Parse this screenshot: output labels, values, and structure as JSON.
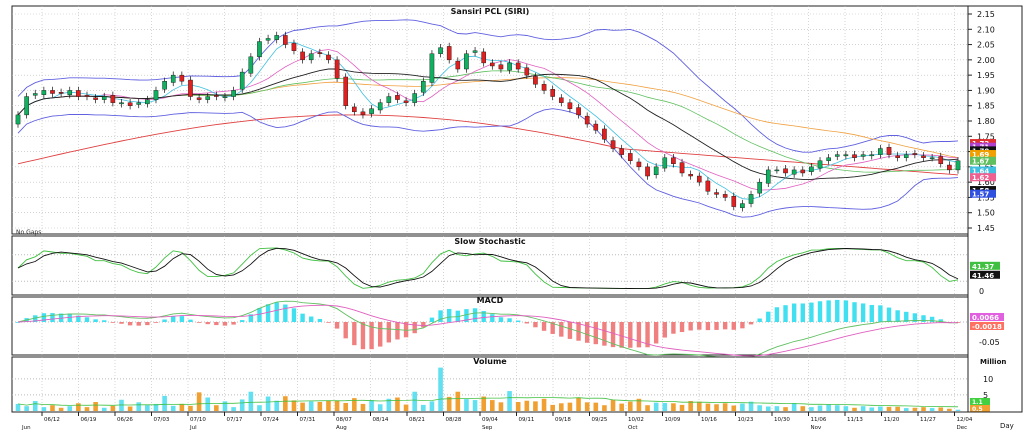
{
  "chart_data": [
    {
      "type": "candlestick",
      "title": "Sansiri PCL (SIRI)",
      "corner_label": "No Gaps",
      "ylim": [
        1.45,
        2.15
      ],
      "yticks": [
        "2.15",
        "2.10",
        "2.05",
        "2.00",
        "1.95",
        "1.90",
        "1.85",
        "1.80",
        "1.75",
        "1.70",
        "1.65",
        "1.60",
        "1.55",
        "1.50",
        "1.45"
      ],
      "price_tags": [
        {
          "text": "1.72",
          "color": "#e03030"
        },
        {
          "text": "1.71",
          "color": "#b040d0"
        },
        {
          "text": "1.70",
          "color": "#111111"
        },
        {
          "text": "1.69",
          "color": "#f0a000"
        },
        {
          "text": "1.67",
          "color": "#60c060"
        },
        {
          "text": "1.64",
          "color": "#40c0e0"
        },
        {
          "text": "1.62",
          "color": "#f06090"
        },
        {
          "text": "1.58",
          "color": "#111111"
        },
        {
          "text": "1.57",
          "color": "#3050e0"
        }
      ],
      "close": [
        1.82,
        1.88,
        1.89,
        1.9,
        1.89,
        1.89,
        1.9,
        1.88,
        1.88,
        1.87,
        1.88,
        1.86,
        1.86,
        1.85,
        1.86,
        1.87,
        1.9,
        1.93,
        1.95,
        1.93,
        1.88,
        1.87,
        1.88,
        1.88,
        1.88,
        1.9,
        1.96,
        2.01,
        2.06,
        2.07,
        2.08,
        2.05,
        2.03,
        2.0,
        2.02,
        2.02,
        2.0,
        1.94,
        1.85,
        1.83,
        1.82,
        1.84,
        1.86,
        1.88,
        1.87,
        1.86,
        1.89,
        1.93,
        2.02,
        2.04,
        2.0,
        1.97,
        2.02,
        2.03,
        1.99,
        1.98,
        1.97,
        1.99,
        1.97,
        1.95,
        1.92,
        1.9,
        1.88,
        1.86,
        1.84,
        1.82,
        1.79,
        1.77,
        1.74,
        1.71,
        1.69,
        1.67,
        1.65,
        1.62,
        1.65,
        1.68,
        1.66,
        1.63,
        1.62,
        1.6,
        1.57,
        1.56,
        1.55,
        1.52,
        1.53,
        1.56,
        1.6,
        1.64,
        1.64,
        1.63,
        1.64,
        1.63,
        1.65,
        1.67,
        1.68,
        1.69,
        1.69,
        1.68,
        1.69,
        1.69,
        1.71,
        1.69,
        1.68,
        1.69,
        1.69,
        1.68,
        1.68,
        1.66,
        1.64,
        1.67
      ]
    },
    {
      "type": "line",
      "title": "Slow Stochastic",
      "ylim": [
        0,
        100
      ],
      "yticks": [
        "0"
      ],
      "tags": [
        {
          "text": "41.37",
          "color": "#40c040"
        },
        {
          "text": "41.46",
          "color": "#111111"
        }
      ],
      "series": []
    },
    {
      "type": "line",
      "title": "MACD",
      "yticks": [
        "-0.05"
      ],
      "tags": [
        {
          "text": "0.0066",
          "color": "#e060e0"
        },
        {
          "text": "-0.0018",
          "color": "#ff7060"
        }
      ],
      "series": []
    },
    {
      "type": "bar",
      "title": "Volume",
      "unit_label": "Million",
      "yticks": [
        "10",
        "5"
      ],
      "values": [
        2.2,
        1.5,
        3.1,
        1.2,
        1.8,
        1.0,
        1.5,
        2.4,
        1.2,
        2.8,
        1.0,
        1.6,
        3.5,
        1.4,
        2.7,
        1.8,
        2.2,
        4.7,
        1.6,
        2.2,
        1.6,
        5.8,
        4.2,
        1.8,
        3.0,
        1.2,
        3.6,
        6.0,
        1.8,
        4.5,
        3.2,
        4.6,
        3.3,
        2.6,
        3.0,
        2.8,
        3.2,
        3.3,
        2.5,
        4.0,
        2.2,
        3.4,
        2.1,
        3.8,
        4.2,
        2.0,
        6.0,
        1.9,
        3.0,
        13.5,
        4.4,
        6.0,
        3.7,
        3.4,
        4.5,
        3.4,
        2.7,
        6.2,
        2.8,
        3.2,
        3.0,
        3.8,
        1.9,
        2.4,
        2.6,
        4.2,
        2.7,
        2.6,
        1.8,
        3.5,
        2.3,
        2.9,
        3.8,
        1.8,
        2.6,
        2.5,
        2.4,
        1.9,
        3.1,
        2.9,
        2.3,
        2.1,
        2.4,
        1.7,
        2.3,
        2.9,
        1.8,
        1.4,
        1.5,
        1.2,
        2.5,
        1.5,
        1.2,
        1.7,
        2.0,
        1.8,
        1.5,
        1.0,
        1.5,
        1.1,
        1.4,
        1.3,
        1.3,
        0.9,
        1.0,
        1.2,
        0.9,
        1.1,
        0.7,
        0.4
      ],
      "tags": [
        {
          "text": "1.1",
          "color": "#40d040"
        },
        {
          "text": "0.5",
          "color": "#f0a030"
        }
      ]
    }
  ],
  "x_axis": {
    "dates": [
      "06/12",
      "06/19",
      "06/26",
      "07/03",
      "07/10",
      "07/17",
      "07/24",
      "07/31",
      "08/07",
      "08/14",
      "08/21",
      "08/28",
      "09/04",
      "09/11",
      "09/18",
      "09/25",
      "10/02",
      "10/09",
      "10/16",
      "10/23",
      "10/30",
      "11/06",
      "11/13",
      "11/20",
      "11/27",
      "12/04"
    ],
    "months": [
      "Jun",
      "Jul",
      "Aug",
      "Sep",
      "Oct",
      "Nov",
      "Dec"
    ],
    "period": "Day"
  }
}
